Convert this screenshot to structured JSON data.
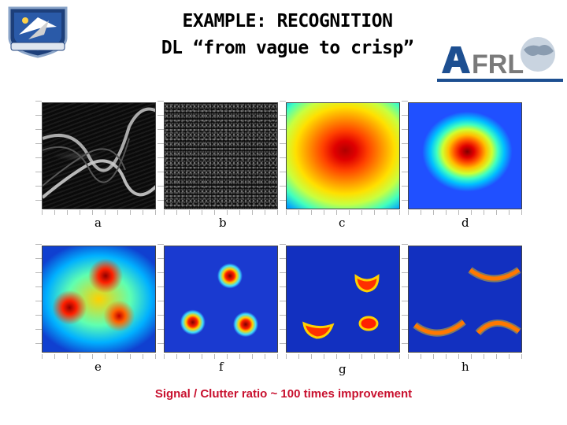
{
  "slide": {
    "title_line1": "EXAMPLE: RECOGNITION",
    "title_line2": "DL “from vague to crisp”",
    "caption": "Signal / Clutter ratio ~ 100 times improvement",
    "logos": {
      "left": "air-force-unit-emblem",
      "right_text": "AFRL"
    },
    "panels": [
      {
        "id": "a",
        "label": "a"
      },
      {
        "id": "b",
        "label": "b"
      },
      {
        "id": "c",
        "label": "c"
      },
      {
        "id": "d",
        "label": "d"
      },
      {
        "id": "e",
        "label": "e"
      },
      {
        "id": "f",
        "label": "f"
      },
      {
        "id": "g",
        "label": "g"
      },
      {
        "id": "h",
        "label": "h"
      }
    ],
    "colors": {
      "caption": "#c8102e",
      "afrl_blue": "#1d4f91",
      "afrl_gray": "#7a7a7a"
    }
  }
}
